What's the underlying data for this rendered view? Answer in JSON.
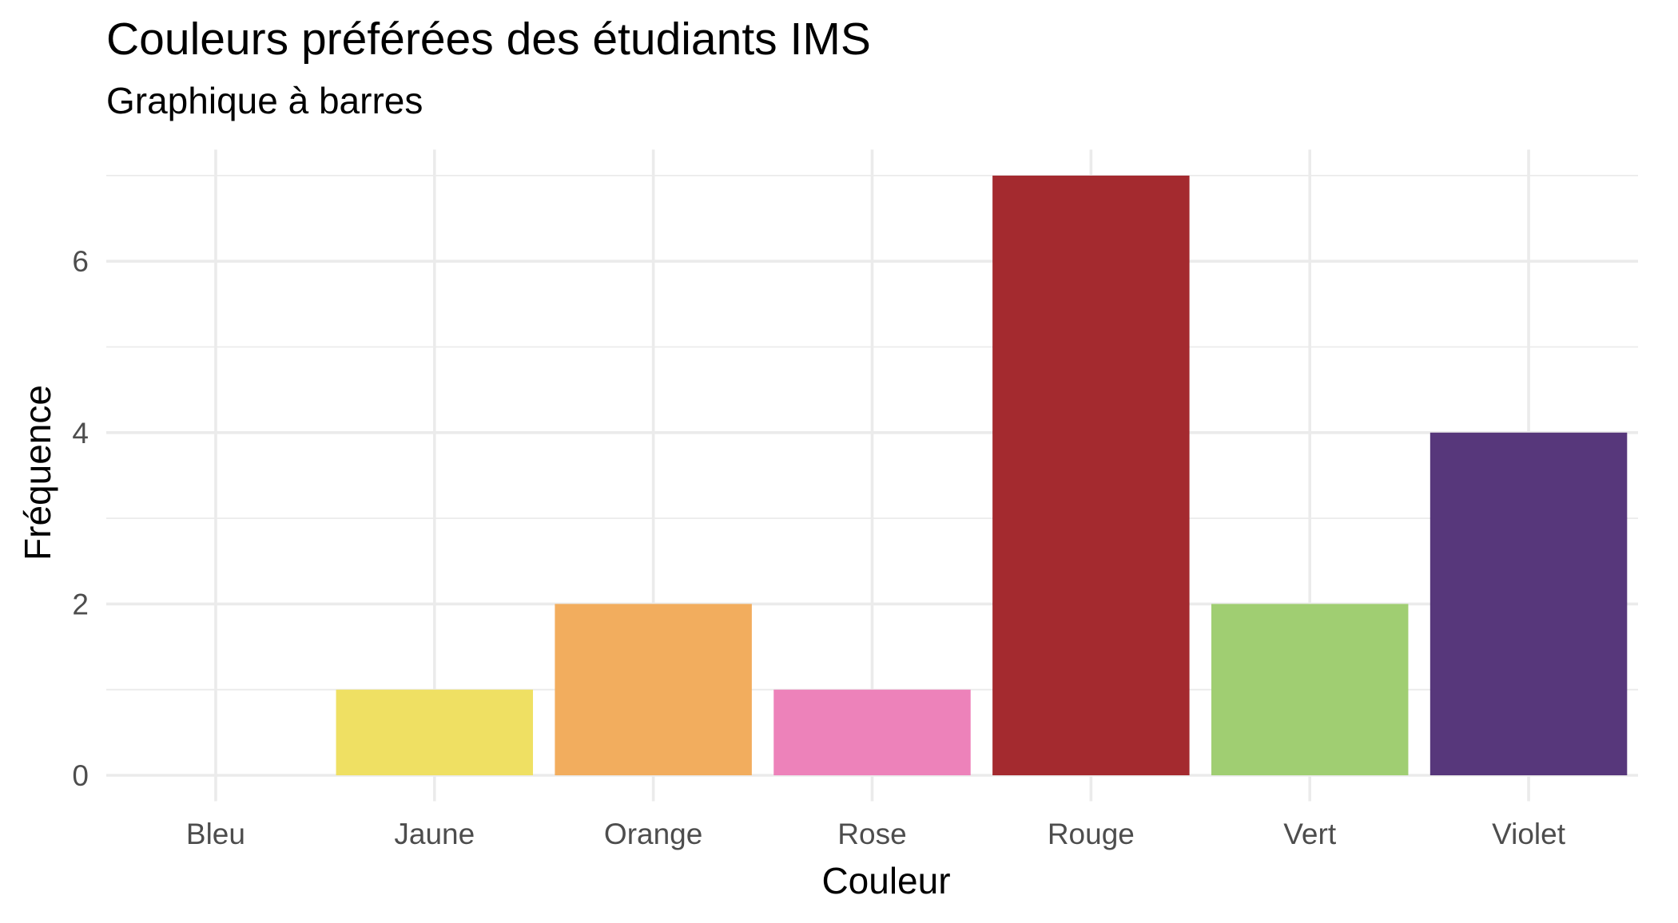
{
  "chart_data": {
    "type": "bar",
    "title": "Couleurs préférées des étudiants IMS",
    "subtitle": "Graphique à barres",
    "xlabel": "Couleur",
    "ylabel": "Fréquence",
    "categories": [
      "Bleu",
      "Jaune",
      "Orange",
      "Rose",
      "Rouge",
      "Vert",
      "Violet"
    ],
    "values": [
      0,
      1,
      2,
      1,
      7,
      2,
      4
    ],
    "bar_colors": [
      "#2c7bb6",
      "#efe063",
      "#f2ad5e",
      "#ed82ba",
      "#a42a2f",
      "#a0ce72",
      "#57377b"
    ],
    "ylim": [
      0,
      7
    ],
    "yticks": [
      0,
      2,
      4,
      6
    ],
    "ytick_labels": [
      "0",
      "2",
      "4",
      "6"
    ],
    "grid": true,
    "legend": "none",
    "colors": {
      "grid": "#ebebeb",
      "tick_text": "#4d4d4d",
      "text": "#000000",
      "background": "#ffffff"
    }
  }
}
